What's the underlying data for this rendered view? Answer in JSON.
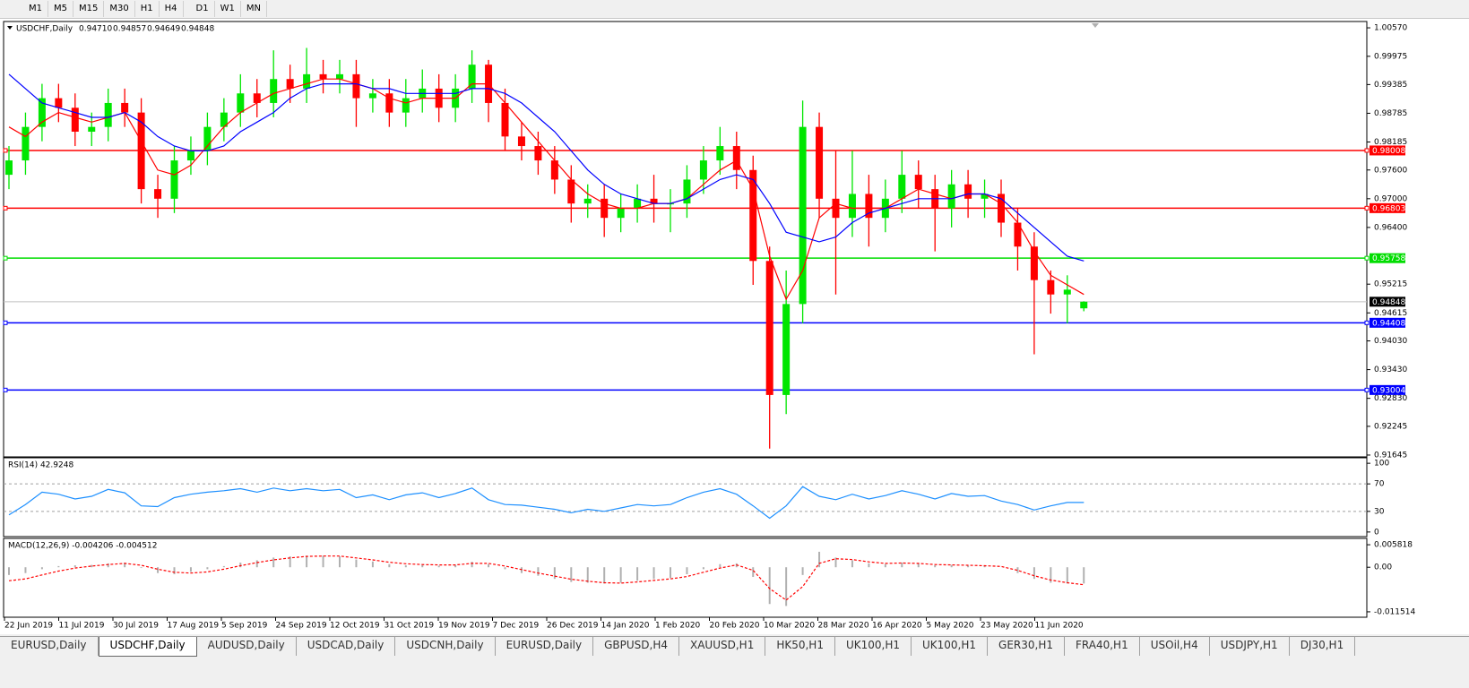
{
  "toolbar": {
    "timeframes": [
      "M1",
      "M5",
      "M15",
      "M30",
      "H1",
      "H4",
      "D1",
      "W1",
      "MN"
    ]
  },
  "main": {
    "symbol": "USDCHF,Daily",
    "ohlc": [
      "0.94710",
      "0.94857",
      "0.94649",
      "0.94848"
    ],
    "ylim": [
      0.91607,
      1.00702
    ],
    "yticks": [
      {
        "value": 1.0057,
        "label": "1.00570"
      },
      0.99975,
      0.99385,
      0.98785,
      0.98185,
      {
        "value": 0.976,
        "label": "0.97600"
      },
      {
        "value": 0.97,
        "label": "0.97000"
      },
      {
        "value": 0.964,
        "label": "0.96400"
      },
      0.95215,
      0.94615,
      {
        "value": 0.9403,
        "label": "0.94030"
      },
      {
        "value": 0.9343,
        "label": "0.93430"
      },
      {
        "value": 0.9283,
        "label": "0.92830"
      },
      0.92245,
      0.91645
    ],
    "bull_color": "#00e600",
    "bear_color": "#ff0000",
    "candles": {
      "open": [
        0.975,
        0.978,
        0.985,
        0.991,
        0.989,
        0.984,
        0.985,
        0.99,
        0.988,
        0.972,
        0.97,
        0.978,
        0.98,
        0.985,
        0.988,
        0.992,
        0.99,
        0.995,
        0.993,
        0.996,
        0.995,
        0.996,
        0.991,
        0.992,
        0.988,
        0.991,
        0.993,
        0.989,
        0.993,
        0.998,
        0.99,
        0.983,
        0.981,
        0.978,
        0.974,
        0.969,
        0.97,
        0.966,
        0.968,
        0.97,
        0.969,
        0.969,
        0.974,
        0.978,
        0.981,
        0.976,
        0.957,
        0.929,
        0.948,
        0.985,
        0.97,
        0.966,
        0.971,
        0.966,
        0.97,
        0.975,
        0.972,
        0.968,
        0.973,
        0.97,
        0.971,
        0.965,
        0.96,
        0.953,
        0.95,
        0.9471
      ],
      "high": [
        0.981,
        0.988,
        0.994,
        0.994,
        0.992,
        0.988,
        0.993,
        0.993,
        0.991,
        0.975,
        0.981,
        0.983,
        0.988,
        0.991,
        0.996,
        0.995,
        1.001,
        0.998,
        1.0015,
        0.999,
        0.999,
        0.999,
        0.995,
        0.995,
        0.995,
        0.997,
        0.996,
        0.996,
        1.001,
        0.999,
        0.993,
        0.986,
        0.984,
        0.981,
        0.977,
        0.973,
        0.973,
        0.971,
        0.973,
        0.975,
        0.972,
        0.977,
        0.981,
        0.985,
        0.984,
        0.979,
        0.96,
        0.955,
        0.9905,
        0.988,
        0.98,
        0.98,
        0.975,
        0.974,
        0.98,
        0.978,
        0.975,
        0.976,
        0.976,
        0.974,
        0.974,
        0.968,
        0.963,
        0.955,
        0.954,
        0.94857
      ],
      "low": [
        0.972,
        0.975,
        0.982,
        0.986,
        0.981,
        0.981,
        0.982,
        0.985,
        0.969,
        0.966,
        0.967,
        0.975,
        0.977,
        0.982,
        0.985,
        0.987,
        0.987,
        0.99,
        0.99,
        0.992,
        0.992,
        0.985,
        0.988,
        0.985,
        0.985,
        0.988,
        0.986,
        0.986,
        0.99,
        0.986,
        0.98,
        0.978,
        0.975,
        0.971,
        0.965,
        0.966,
        0.962,
        0.963,
        0.965,
        0.965,
        0.963,
        0.966,
        0.971,
        0.975,
        0.972,
        0.952,
        0.9178,
        0.925,
        0.944,
        0.966,
        0.95,
        0.962,
        0.96,
        0.963,
        0.967,
        0.968,
        0.959,
        0.964,
        0.966,
        0.966,
        0.962,
        0.955,
        0.9375,
        0.946,
        0.944,
        0.94649
      ],
      "close": [
        0.978,
        0.985,
        0.991,
        0.989,
        0.984,
        0.985,
        0.99,
        0.988,
        0.972,
        0.97,
        0.978,
        0.98,
        0.985,
        0.988,
        0.992,
        0.99,
        0.995,
        0.993,
        0.996,
        0.995,
        0.996,
        0.991,
        0.992,
        0.988,
        0.991,
        0.993,
        0.989,
        0.993,
        0.998,
        0.99,
        0.983,
        0.981,
        0.978,
        0.974,
        0.969,
        0.97,
        0.966,
        0.968,
        0.97,
        0.969,
        0.969,
        0.974,
        0.978,
        0.981,
        0.976,
        0.957,
        0.929,
        0.948,
        0.985,
        0.97,
        0.966,
        0.971,
        0.966,
        0.97,
        0.975,
        0.972,
        0.968,
        0.973,
        0.97,
        0.971,
        0.965,
        0.96,
        0.953,
        0.95,
        0.951,
        0.94848
      ]
    },
    "lines": [
      {
        "color": "#ff0000",
        "values": [
          0.985,
          0.983,
          0.986,
          0.988,
          0.987,
          0.986,
          0.987,
          0.988,
          0.982,
          0.976,
          0.975,
          0.977,
          0.981,
          0.985,
          0.988,
          0.99,
          0.992,
          0.993,
          0.994,
          0.995,
          0.995,
          0.994,
          0.993,
          0.991,
          0.99,
          0.991,
          0.991,
          0.991,
          0.994,
          0.994,
          0.99,
          0.986,
          0.982,
          0.978,
          0.974,
          0.971,
          0.969,
          0.968,
          0.968,
          0.969,
          0.969,
          0.97,
          0.973,
          0.976,
          0.978,
          0.972,
          0.958,
          0.949,
          0.955,
          0.966,
          0.969,
          0.968,
          0.968,
          0.968,
          0.97,
          0.972,
          0.971,
          0.97,
          0.971,
          0.971,
          0.969,
          0.965,
          0.959,
          0.954,
          0.952,
          0.95
        ]
      },
      {
        "color": "#0000ff",
        "values": [
          0.996,
          0.993,
          0.99,
          0.989,
          0.988,
          0.987,
          0.987,
          0.988,
          0.986,
          0.983,
          0.981,
          0.98,
          0.98,
          0.981,
          0.984,
          0.986,
          0.988,
          0.991,
          0.993,
          0.994,
          0.994,
          0.994,
          0.993,
          0.993,
          0.992,
          0.992,
          0.992,
          0.992,
          0.993,
          0.993,
          0.992,
          0.99,
          0.987,
          0.984,
          0.98,
          0.976,
          0.973,
          0.971,
          0.97,
          0.969,
          0.969,
          0.97,
          0.972,
          0.974,
          0.975,
          0.974,
          0.969,
          0.963,
          0.962,
          0.961,
          0.962,
          0.965,
          0.967,
          0.968,
          0.969,
          0.97,
          0.97,
          0.97,
          0.971,
          0.971,
          0.97,
          0.967,
          0.964,
          0.961,
          0.958,
          0.957
        ]
      }
    ],
    "levels": [
      {
        "value": 0.98008,
        "color": "#ff0000"
      },
      {
        "value": 0.96803,
        "color": "#ff0000"
      },
      {
        "value": 0.95758,
        "color": "#00dd00"
      },
      {
        "value": 0.94408,
        "color": "#0000ff"
      },
      {
        "value": 0.93004,
        "color": "#0000ff"
      }
    ],
    "current_price": 0.94848
  },
  "rsi": {
    "title": "RSI(14) 42.9248",
    "ylim": [
      -6.7,
      108
    ],
    "yticks": [
      100,
      70,
      30,
      0
    ],
    "levels": [
      70,
      30
    ],
    "color": "#1e90ff",
    "values": [
      25,
      40,
      58,
      55,
      48,
      52,
      62,
      57,
      38,
      37,
      50,
      55,
      58,
      60,
      63,
      58,
      64,
      60,
      63,
      60,
      62,
      50,
      54,
      47,
      54,
      57,
      50,
      56,
      64,
      47,
      40,
      39,
      36,
      33,
      28,
      33,
      30,
      35,
      40,
      38,
      40,
      50,
      58,
      63,
      55,
      38,
      20,
      38,
      66,
      52,
      47,
      55,
      48,
      53,
      60,
      55,
      48,
      56,
      52,
      53,
      45,
      40,
      32,
      38,
      43,
      42.9248
    ]
  },
  "macd": {
    "title": "MACD(12,26,9) -0.004206 -0.004512",
    "ylim": [
      -0.012919,
      0.007458
    ],
    "yticks": [
      0.005818,
      {
        "value": 0,
        "label": "0.00"
      },
      -0.011514
    ],
    "histogram": {
      "color": "#b0b0b0",
      "values": [
        -0.002,
        -0.0015,
        -0.0005,
        0.0003,
        0.0005,
        0.0006,
        0.001,
        0.0012,
        -0.0002,
        -0.0015,
        -0.0018,
        -0.0012,
        -0.0005,
        0.0003,
        0.0012,
        0.0018,
        0.0025,
        0.0028,
        0.003,
        0.003,
        0.0028,
        0.002,
        0.0015,
        0.0008,
        0.0005,
        0.0006,
        0.0004,
        0.0006,
        0.0014,
        0.0008,
        -0.0005,
        -0.0015,
        -0.0022,
        -0.003,
        -0.0038,
        -0.004,
        -0.0042,
        -0.004,
        -0.0035,
        -0.003,
        -0.0028,
        -0.0018,
        -0.0005,
        0.0008,
        0.001,
        -0.0025,
        -0.0095,
        -0.01,
        -0.002,
        0.004,
        0.0025,
        0.0018,
        0.001,
        0.0008,
        0.0012,
        0.001,
        0.0005,
        0.0006,
        0.0004,
        0.0004,
        0,
        -0.0015,
        -0.003,
        -0.004,
        -0.0042,
        -0.004206
      ]
    },
    "signal": {
      "color": "#ff0000",
      "values": [
        -0.0035,
        -0.003,
        -0.002,
        -0.001,
        -0.0002,
        0.0003,
        0.0007,
        0.001,
        0.0005,
        -0.0005,
        -0.0013,
        -0.0015,
        -0.0012,
        -0.0005,
        0.0004,
        0.0012,
        0.0019,
        0.0024,
        0.0028,
        0.0029,
        0.0029,
        0.0024,
        0.0019,
        0.0013,
        0.0009,
        0.0007,
        0.0006,
        0.0006,
        0.001,
        0.001,
        0.0003,
        -0.0006,
        -0.0015,
        -0.0023,
        -0.0031,
        -0.0036,
        -0.004,
        -0.0041,
        -0.0038,
        -0.0034,
        -0.003,
        -0.0024,
        -0.0013,
        -0.0002,
        0.0006,
        -0.0008,
        -0.0055,
        -0.0085,
        -0.005,
        0.001,
        0.0022,
        0.002,
        0.0014,
        0.001,
        0.0011,
        0.001,
        0.0007,
        0.0006,
        0.0005,
        0.0004,
        0.0002,
        -0.0008,
        -0.0022,
        -0.0033,
        -0.004,
        -0.004512
      ]
    }
  },
  "date_axis": [
    "22 Jun 2019",
    "11 Jul 2019",
    "30 Jul 2019",
    "17 Aug 2019",
    "5 Sep 2019",
    "24 Sep 2019",
    "12 Oct 2019",
    "31 Oct 2019",
    "19 Nov 2019",
    "7 Dec 2019",
    "26 Dec 2019",
    "14 Jan 2020",
    "1 Feb 2020",
    "20 Feb 2020",
    "10 Mar 2020",
    "28 Mar 2020",
    "16 Apr 2020",
    "5 May 2020",
    "23 May 2020",
    "11 Jun 2020"
  ],
  "tabs": [
    "EURUSD,Daily",
    "USDCHF,Daily",
    "AUDUSD,Daily",
    "USDCAD,Daily",
    "USDCNH,Daily",
    "EURUSD,Daily",
    "GBPUSD,H4",
    "XAUUSD,H1",
    "HK50,H1",
    "UK100,H1",
    "UK100,H1",
    "GER30,H1",
    "FRA40,H1",
    "USOil,H4",
    "USDJPY,H1",
    "DJ30,H1"
  ],
  "active_tab": 1
}
